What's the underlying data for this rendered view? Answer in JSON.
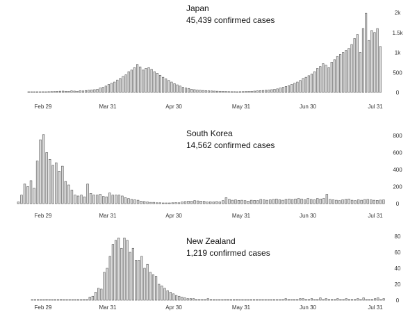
{
  "chart_data": [
    {
      "type": "bar",
      "title": "Japan",
      "subtitle": "45,439 confirmed cases",
      "x_tick_labels": [
        "Feb 29",
        "Mar 31",
        "Apr 30",
        "May 31",
        "Jun 30",
        "Jul 31"
      ],
      "y_tick_labels": [
        "0",
        "500",
        "1k",
        "1.5k",
        "2k"
      ],
      "ylim": [
        0,
        2000
      ],
      "y_ticks": [
        0,
        500,
        1000,
        1500,
        2000
      ],
      "values": [
        12,
        10,
        14,
        12,
        8,
        18,
        15,
        20,
        22,
        25,
        28,
        32,
        35,
        30,
        28,
        40,
        35,
        30,
        42,
        38,
        48,
        55,
        62,
        70,
        80,
        110,
        130,
        160,
        200,
        230,
        260,
        310,
        350,
        400,
        440,
        520,
        560,
        620,
        700,
        640,
        560,
        600,
        620,
        580,
        520,
        480,
        430,
        380,
        340,
        300,
        260,
        220,
        190,
        160,
        130,
        110,
        100,
        80,
        70,
        60,
        55,
        50,
        45,
        40,
        38,
        35,
        32,
        30,
        28,
        25,
        22,
        20,
        20,
        18,
        20,
        22,
        25,
        28,
        30,
        35,
        40,
        45,
        50,
        55,
        60,
        70,
        80,
        90,
        110,
        130,
        150,
        170,
        200,
        230,
        260,
        300,
        350,
        380,
        420,
        460,
        520,
        600,
        650,
        720,
        680,
        620,
        760,
        820,
        900,
        950,
        1000,
        1050,
        1100,
        1200,
        1350,
        1450,
        1000,
        1600,
        1980,
        1300,
        1550,
        1500,
        1600,
        1150
      ]
    },
    {
      "type": "bar",
      "title": "South Korea",
      "subtitle": "14,562 confirmed cases",
      "x_tick_labels": [
        "Feb 29",
        "Mar 31",
        "Apr 30",
        "May 31",
        "Jun 30",
        "Jul 31"
      ],
      "y_tick_labels": [
        "0",
        "200",
        "400",
        "600",
        "800"
      ],
      "ylim": [
        0,
        800
      ],
      "y_ticks": [
        0,
        200,
        400,
        600,
        800
      ],
      "values": [
        20,
        100,
        230,
        200,
        270,
        180,
        500,
        750,
        810,
        600,
        520,
        450,
        480,
        380,
        440,
        260,
        220,
        160,
        100,
        90,
        100,
        80,
        230,
        120,
        100,
        100,
        110,
        85,
        80,
        125,
        100,
        100,
        100,
        90,
        70,
        60,
        50,
        45,
        40,
        30,
        25,
        20,
        15,
        15,
        10,
        10,
        8,
        6,
        8,
        10,
        12,
        10,
        20,
        25,
        30,
        28,
        35,
        32,
        30,
        28,
        20,
        22,
        20,
        25,
        20,
        35,
        70,
        50,
        40,
        45,
        38,
        40,
        35,
        30,
        40,
        38,
        35,
        50,
        45,
        40,
        45,
        50,
        55,
        45,
        40,
        50,
        55,
        48,
        55,
        60,
        55,
        45,
        60,
        50,
        45,
        60,
        55,
        60,
        110,
        50,
        45,
        40,
        35,
        45,
        50,
        55,
        40,
        35,
        45,
        40,
        48,
        50,
        45,
        40,
        38,
        42,
        44
      ]
    },
    {
      "type": "bar",
      "title": "New Zealand",
      "subtitle": "1,219 confirmed cases",
      "x_tick_labels": [
        "Feb 29",
        "Mar 31",
        "Apr 30",
        "May 31",
        "Jun 30",
        "Jul 31"
      ],
      "y_tick_labels": [
        "0",
        "20",
        "40",
        "60",
        "80"
      ],
      "ylim": [
        0,
        80
      ],
      "y_ticks": [
        0,
        20,
        40,
        60,
        80
      ],
      "values": [
        0,
        0,
        0,
        0,
        0,
        1,
        0,
        0,
        0,
        0,
        1,
        0,
        0,
        0,
        0,
        0,
        0,
        0,
        1,
        1,
        4,
        5,
        10,
        15,
        14,
        35,
        40,
        55,
        70,
        75,
        78,
        65,
        78,
        75,
        60,
        65,
        50,
        50,
        55,
        40,
        45,
        35,
        32,
        30,
        20,
        18,
        15,
        12,
        10,
        8,
        6,
        5,
        4,
        3,
        2,
        2,
        2,
        1,
        1,
        1,
        1,
        2,
        1,
        0,
        0,
        0,
        0,
        1,
        1,
        0,
        0,
        1,
        0,
        0,
        0,
        0,
        0,
        0,
        0,
        0,
        0,
        0,
        0,
        0,
        0,
        0,
        0,
        1,
        2,
        1,
        1,
        1,
        1,
        2,
        2,
        1,
        1,
        2,
        1,
        1,
        3,
        1,
        2,
        1,
        1,
        1,
        2,
        1,
        1,
        2,
        1,
        1,
        1,
        2,
        1,
        3,
        1,
        1,
        1,
        2,
        3,
        1,
        2
      ]
    }
  ]
}
